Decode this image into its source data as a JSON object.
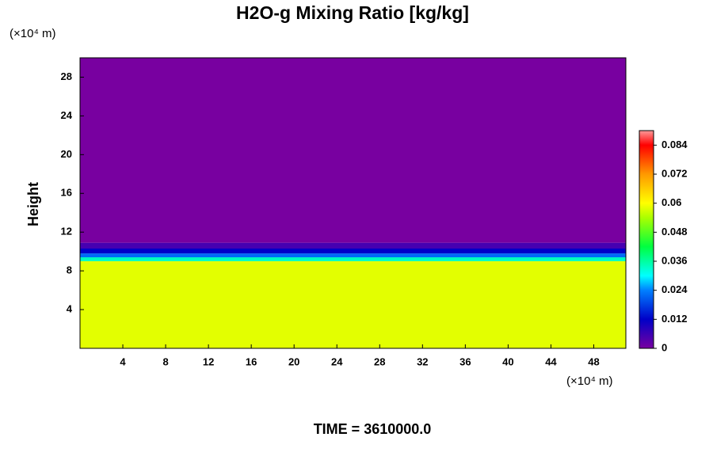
{
  "chart_data": {
    "type": "contour",
    "title": "H2O-g Mixing Ratio [kg/kg]",
    "y_label": "Height",
    "x_unit": "(×10⁴ m)",
    "y_unit": "(×10⁴ m)",
    "footer": "TIME = 3610000.0",
    "xlim": [
      0,
      51
    ],
    "xticks": [
      4,
      8,
      12,
      16,
      20,
      24,
      28,
      32,
      36,
      40,
      44,
      48
    ],
    "ylim": [
      0,
      30
    ],
    "yticks": [
      4,
      8,
      12,
      16,
      20,
      24,
      28
    ],
    "clim": [
      0,
      0.09
    ],
    "cticks": [
      0,
      0.012,
      0.024,
      0.036,
      0.048,
      0.06,
      0.072,
      0.084
    ],
    "colorscale": [
      [
        0,
        "#7800a0"
      ],
      [
        0.012,
        "#0000c8"
      ],
      [
        0.024,
        "#0080ff"
      ],
      [
        0.03,
        "#00ffff"
      ],
      [
        0.042,
        "#00ff40"
      ],
      [
        0.054,
        "#aaff00"
      ],
      [
        0.06,
        "#ffff00"
      ],
      [
        0.072,
        "#ff9900"
      ],
      [
        0.084,
        "#ff0000"
      ],
      [
        0.09,
        "#ff9999"
      ]
    ],
    "layers": [
      {
        "y": [
          0,
          9
        ],
        "value": 0.058
      },
      {
        "y": [
          9,
          9.4
        ],
        "value": 0.034
      },
      {
        "y": [
          9.4,
          9.8
        ],
        "value": 0.022
      },
      {
        "y": [
          9.8,
          10.3
        ],
        "value": 0.012
      },
      {
        "y": [
          10.3,
          10.9
        ],
        "value": 0.005
      },
      {
        "y": [
          10.9,
          30
        ],
        "value": 0
      }
    ]
  }
}
